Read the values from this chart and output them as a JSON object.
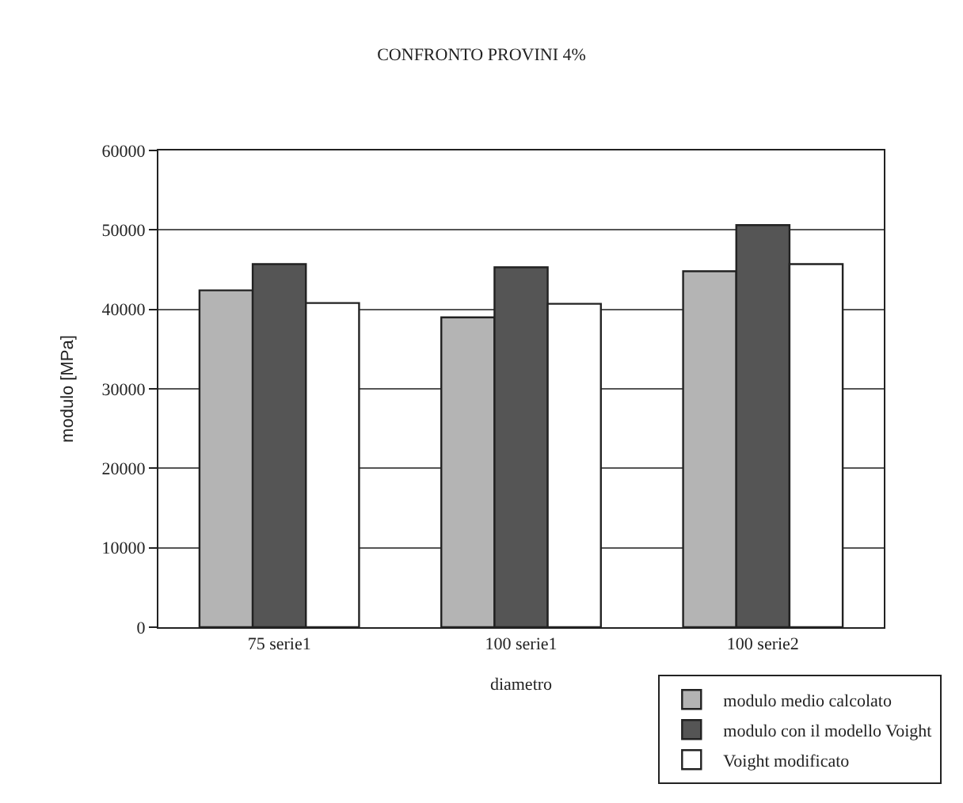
{
  "chart_data": {
    "type": "bar",
    "title": "CONFRONTO PROVINI 4%",
    "xlabel": "diametro",
    "ylabel": "modulo [MPa]",
    "categories": [
      "75 serie1",
      "100 serie1",
      "100 serie2"
    ],
    "series": [
      {
        "name": "modulo medio calcolato",
        "color": "#b4b4b4",
        "values": [
          42400,
          39000,
          44800
        ]
      },
      {
        "name": "modulo con il modello Voight",
        "color": "#555555",
        "values": [
          45700,
          45300,
          50600
        ]
      },
      {
        "name": "Voight modificato",
        "color": "#ffffff",
        "values": [
          40800,
          40700,
          45700
        ]
      }
    ],
    "ylim": [
      0,
      60000
    ],
    "yticks": [
      0,
      10000,
      20000,
      30000,
      40000,
      50000,
      60000
    ],
    "grid": "y",
    "legend": "bottom right"
  }
}
